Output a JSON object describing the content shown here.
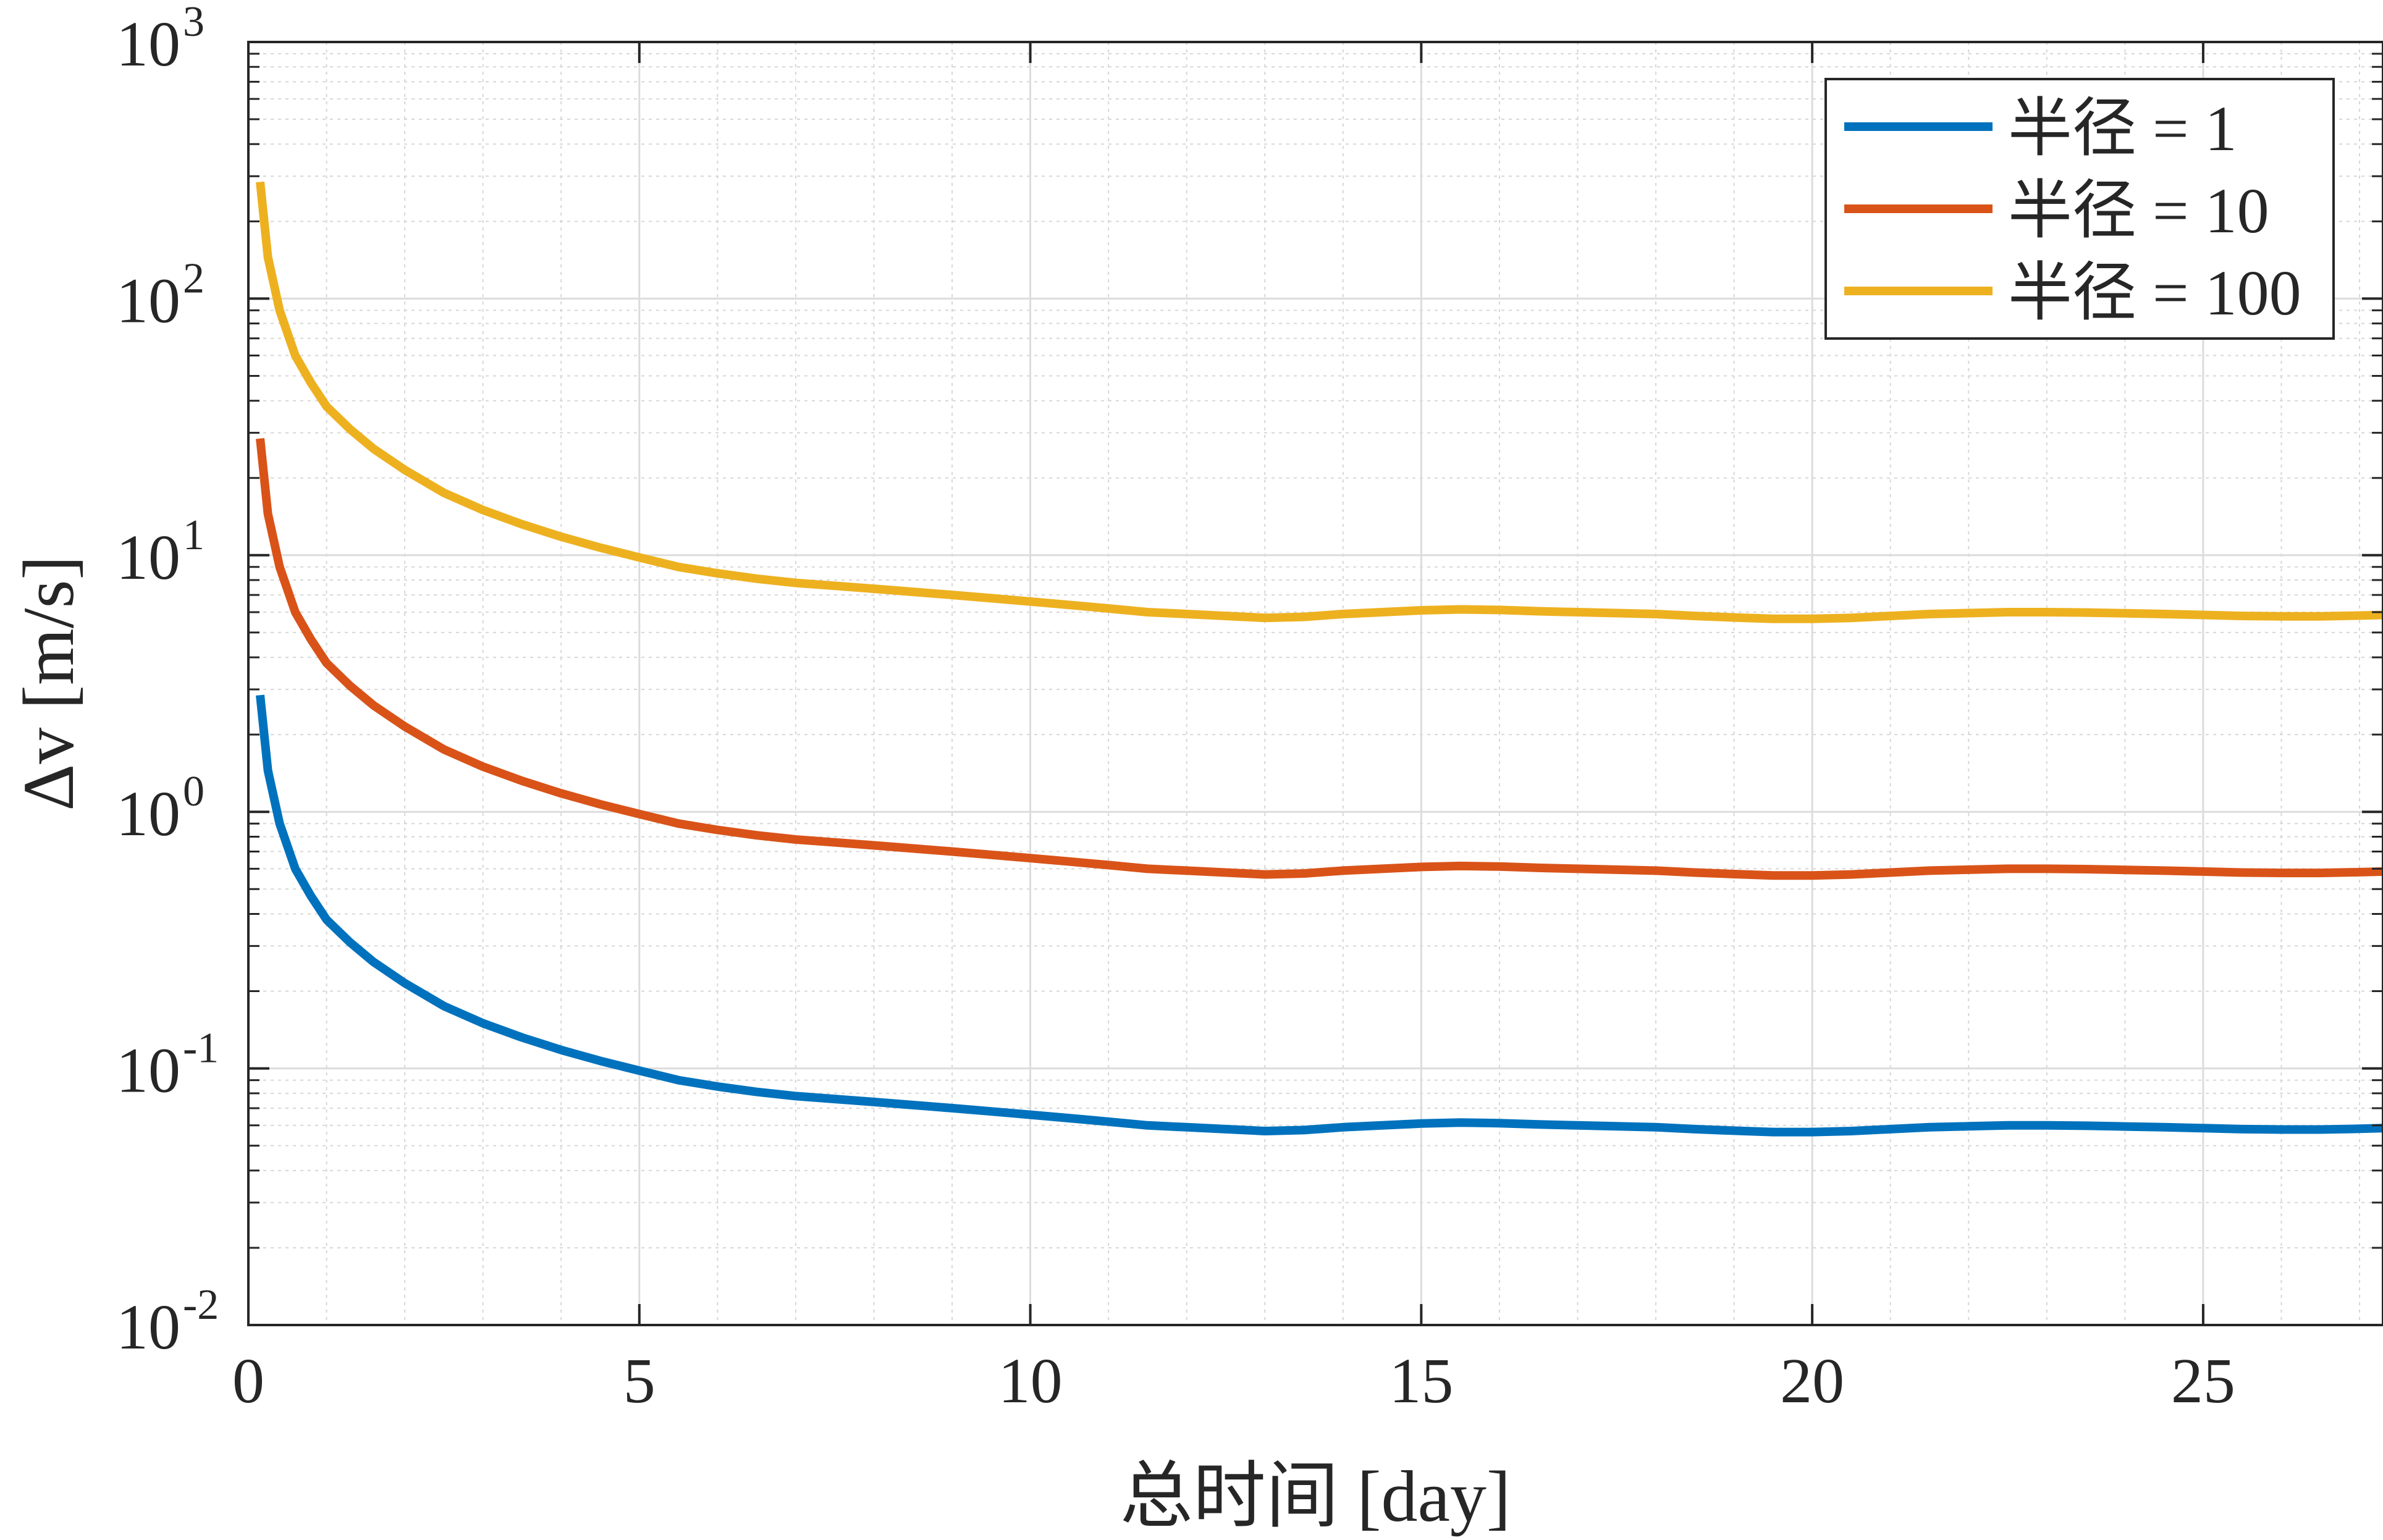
{
  "chart_data": {
    "type": "line",
    "title": "",
    "xlabel": "总时间 [day]",
    "ylabel": "Δv [m/s]",
    "xlim": [
      0,
      27.3
    ],
    "ylim": [
      0.01,
      1000
    ],
    "yscale": "log",
    "grid": true,
    "minor_grid": true,
    "legend_position": "top-right",
    "x_ticks": [
      0,
      5,
      10,
      15,
      20,
      25
    ],
    "x_tick_labels": [
      "0",
      "5",
      "10",
      "15",
      "20",
      "25"
    ],
    "y_ticks": [
      0.01,
      0.1,
      1,
      10,
      100,
      1000
    ],
    "y_tick_labels": [
      {
        "base": "10",
        "exp": "-2"
      },
      {
        "base": "10",
        "exp": "-1"
      },
      {
        "base": "10",
        "exp": "0"
      },
      {
        "base": "10",
        "exp": "1"
      },
      {
        "base": "10",
        "exp": "2"
      },
      {
        "base": "10",
        "exp": "3"
      }
    ],
    "x": [
      0.15,
      0.25,
      0.4,
      0.6,
      0.8,
      1.0,
      1.3,
      1.6,
      2.0,
      2.5,
      3.0,
      3.5,
      4.0,
      4.5,
      5.0,
      5.5,
      6.0,
      6.5,
      7.0,
      7.5,
      8.0,
      8.5,
      9.0,
      9.5,
      10.0,
      10.5,
      11.0,
      11.5,
      12.0,
      12.5,
      13.0,
      13.5,
      14.0,
      14.5,
      15.0,
      15.5,
      16.0,
      16.5,
      17.0,
      17.5,
      18.0,
      18.5,
      19.0,
      19.5,
      20.0,
      20.5,
      21.0,
      21.5,
      22.0,
      22.5,
      23.0,
      23.5,
      24.0,
      24.5,
      25.0,
      25.5,
      26.0,
      26.5,
      27.0,
      27.3
    ],
    "series": [
      {
        "name": "半径 = 1",
        "color": "#0072BD",
        "values": [
          2.85,
          1.45,
          0.9,
          0.6,
          0.47,
          0.38,
          0.31,
          0.26,
          0.215,
          0.175,
          0.15,
          0.132,
          0.118,
          0.107,
          0.098,
          0.09,
          0.085,
          0.081,
          0.078,
          0.076,
          0.074,
          0.072,
          0.07,
          0.068,
          0.066,
          0.064,
          0.062,
          0.06,
          0.059,
          0.058,
          0.057,
          0.0575,
          0.059,
          0.06,
          0.061,
          0.0615,
          0.0612,
          0.0605,
          0.06,
          0.0595,
          0.059,
          0.058,
          0.0572,
          0.0565,
          0.0565,
          0.057,
          0.058,
          0.059,
          0.0595,
          0.06,
          0.06,
          0.0598,
          0.0594,
          0.059,
          0.0585,
          0.058,
          0.0578,
          0.0578,
          0.0582,
          0.0585
        ]
      },
      {
        "name": "半径 = 10",
        "color": "#D95319",
        "values": [
          28.5,
          14.5,
          9.0,
          6.0,
          4.7,
          3.8,
          3.1,
          2.6,
          2.15,
          1.75,
          1.5,
          1.32,
          1.18,
          1.07,
          0.98,
          0.9,
          0.85,
          0.81,
          0.78,
          0.76,
          0.74,
          0.72,
          0.7,
          0.68,
          0.66,
          0.64,
          0.62,
          0.6,
          0.59,
          0.58,
          0.57,
          0.575,
          0.59,
          0.6,
          0.61,
          0.615,
          0.612,
          0.605,
          0.6,
          0.595,
          0.59,
          0.58,
          0.572,
          0.565,
          0.565,
          0.57,
          0.58,
          0.59,
          0.595,
          0.6,
          0.6,
          0.598,
          0.594,
          0.59,
          0.585,
          0.58,
          0.578,
          0.578,
          0.582,
          0.585
        ]
      },
      {
        "name": "半径 = 100",
        "color": "#EDB120",
        "values": [
          285,
          145,
          90,
          60,
          47,
          38,
          31,
          26,
          21.5,
          17.5,
          15.0,
          13.2,
          11.8,
          10.7,
          9.8,
          9.0,
          8.5,
          8.1,
          7.8,
          7.6,
          7.4,
          7.2,
          7.0,
          6.8,
          6.6,
          6.4,
          6.2,
          6.0,
          5.9,
          5.8,
          5.7,
          5.75,
          5.9,
          6.0,
          6.1,
          6.15,
          6.12,
          6.05,
          6.0,
          5.95,
          5.9,
          5.8,
          5.72,
          5.65,
          5.65,
          5.7,
          5.8,
          5.9,
          5.95,
          6.0,
          6.0,
          5.98,
          5.94,
          5.9,
          5.85,
          5.8,
          5.78,
          5.78,
          5.82,
          5.85
        ]
      }
    ]
  }
}
